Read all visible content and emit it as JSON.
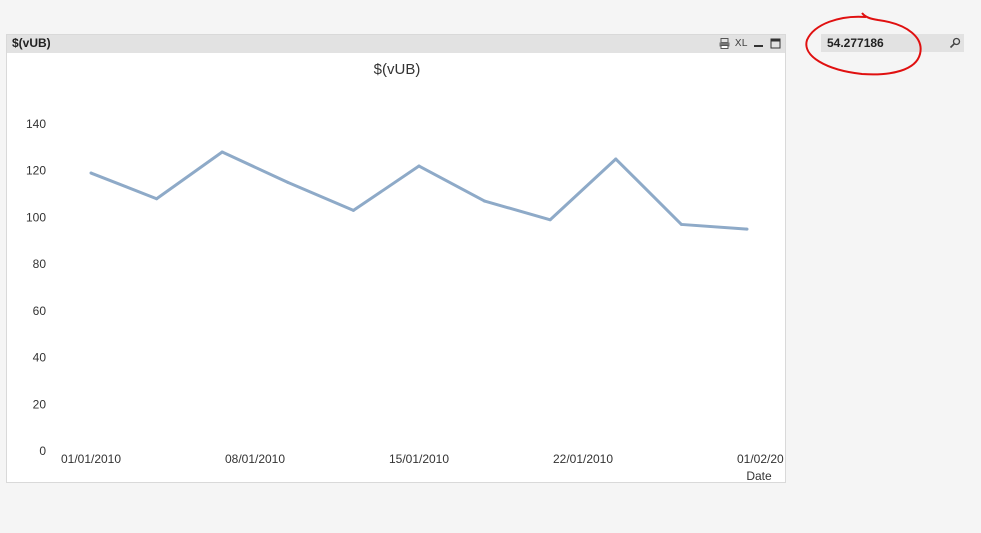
{
  "chart_box": {
    "caption": "$(vUB)",
    "icons": [
      "print-icon",
      "xl-export-icon",
      "minimize-icon",
      "maximize-icon"
    ],
    "xl_label": "XL"
  },
  "field_box": {
    "value": "54.277186",
    "icon": "search-icon"
  },
  "annotation": {
    "color": "#e01010",
    "shape": "hand-drawn circle around value"
  },
  "chart_data": {
    "type": "line",
    "title": "$(vUB)",
    "xlabel": "Date",
    "ylabel": "",
    "ylim": [
      0,
      140
    ],
    "yticks": [
      0,
      20,
      40,
      60,
      80,
      100,
      120,
      140
    ],
    "xtick_labels": [
      "01/01/2010",
      "08/01/2010",
      "15/01/2010",
      "22/01/2010",
      "01/02/20"
    ],
    "line_color": "#8eaac8",
    "grid": false,
    "series": [
      {
        "x": [
          "01/01/2010",
          "04/01/2010",
          "07/01/2010",
          "10/01/2010",
          "13/01/2010",
          "16/01/2010",
          "19/01/2010",
          "22/01/2010",
          "25/01/2010",
          "28/01/2010",
          "31/01/2010"
        ],
        "values": [
          119,
          108,
          128,
          115,
          103,
          122,
          107,
          99,
          125,
          97,
          95
        ]
      }
    ]
  }
}
